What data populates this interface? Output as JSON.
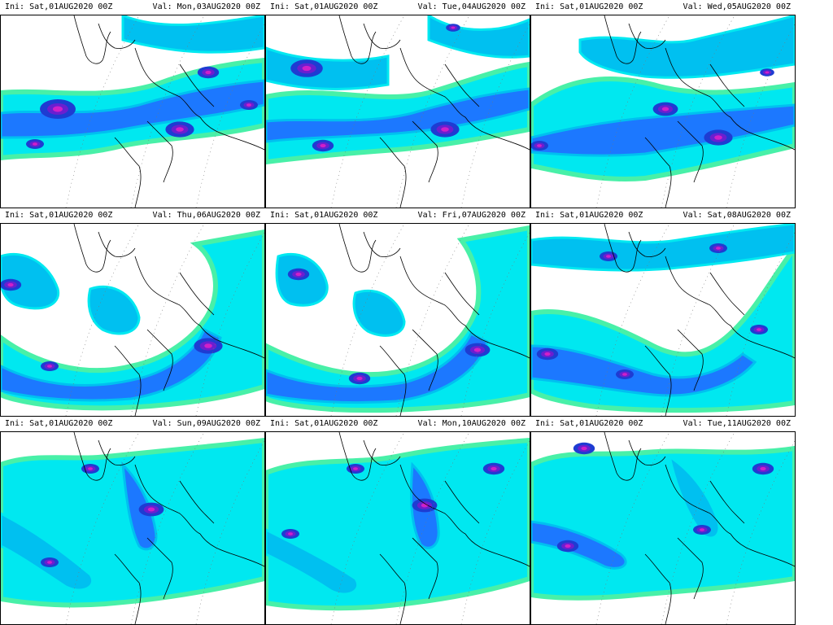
{
  "figure": {
    "layout": {
      "rows": 3,
      "cols": 3
    },
    "colors": {
      "background": "#ffffff",
      "levels": [
        "#48f0a8",
        "#00e8f0",
        "#00c0f0",
        "#1c78ff",
        "#1e3cd2",
        "#6a1fd0",
        "#d020c8"
      ],
      "coastline": "#000000",
      "grid": "#777777"
    },
    "panels": [
      {
        "ini": "Ini: Sat,01AUG2020 00Z",
        "val": "Val: Mon,03AUG2020 00Z"
      },
      {
        "ini": "Ini: Sat,01AUG2020 00Z",
        "val": "Val: Tue,04AUG2020 00Z"
      },
      {
        "ini": "Ini: Sat,01AUG2020 00Z",
        "val": "Val: Wed,05AUG2020 00Z"
      },
      {
        "ini": "Ini: Sat,01AUG2020 00Z",
        "val": "Val: Thu,06AUG2020 00Z"
      },
      {
        "ini": "Ini: Sat,01AUG2020 00Z",
        "val": "Val: Fri,07AUG2020 00Z"
      },
      {
        "ini": "Ini: Sat,01AUG2020 00Z",
        "val": "Val: Sat,08AUG2020 00Z"
      },
      {
        "ini": "Ini: Sat,01AUG2020 00Z",
        "val": "Val: Sun,09AUG2020 00Z"
      },
      {
        "ini": "Ini: Sat,01AUG2020 00Z",
        "val": "Val: Mon,10AUG2020 00Z"
      },
      {
        "ini": "Ini: Sat,01AUG2020 00Z",
        "val": "Val: Tue,11AUG2020 00Z"
      }
    ]
  }
}
